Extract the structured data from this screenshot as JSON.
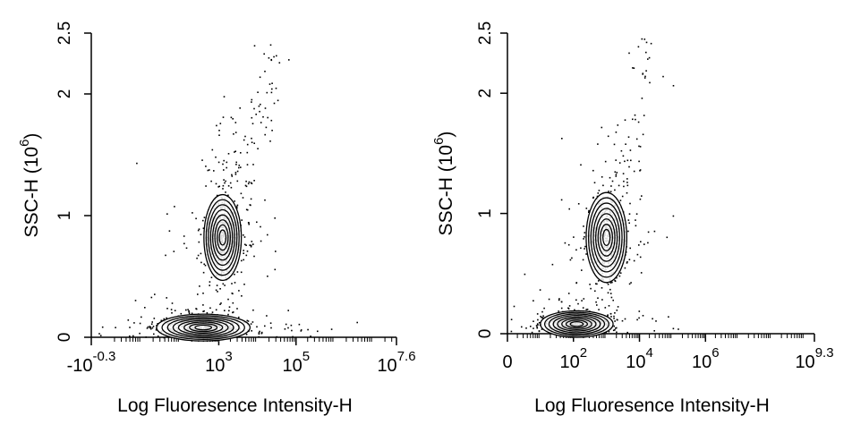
{
  "chart_data": [
    {
      "type": "scatter",
      "subtype": "density-contour",
      "xlabel": "Log Fluoresence Intensity-H",
      "ylabel": "SSC-H",
      "ylabel_unit": "(10",
      "ylabel_unit_exp": "6",
      "ylabel_unit_close": ")",
      "x_scale": "log",
      "xlim_exp": [
        -0.3,
        7.6
      ],
      "ylim": [
        0,
        2.5
      ],
      "x_ticks": [
        {
          "base": "-10",
          "exp": "-0.3",
          "value_exp": -0.3
        },
        {
          "base": "10",
          "exp": "3",
          "value_exp": 3
        },
        {
          "base": "10",
          "exp": "5",
          "value_exp": 5
        },
        {
          "base": "10",
          "exp": "7.6",
          "value_exp": 7.6
        }
      ],
      "y_ticks": [
        {
          "label": "0",
          "value": 0
        },
        {
          "label": "1",
          "value": 1
        },
        {
          "label": "2",
          "value": 2
        },
        {
          "label": "2.5",
          "value": 2.5
        }
      ],
      "populations": [
        {
          "name": "",
          "center_log_x": 3.1,
          "center_y": 0.82,
          "spread_log_x": 0.22,
          "spread_y": 0.16,
          "count": 650
        },
        {
          "name": "",
          "center_log_x": 2.6,
          "center_y": 0.08,
          "spread_log_x": 0.55,
          "spread_y": 0.05,
          "count": 700
        }
      ],
      "grid": false,
      "legend": "none"
    },
    {
      "type": "scatter",
      "subtype": "density-contour",
      "xlabel": "Log Fluoresence Intensity-H",
      "ylabel": "SSC-H",
      "ylabel_unit": "(10",
      "ylabel_unit_exp": "6",
      "ylabel_unit_close": ")",
      "x_scale": "log",
      "xlim_exp": [
        0,
        9.3
      ],
      "ylim": [
        0,
        2.5
      ],
      "x_ticks": [
        {
          "base": "0",
          "exp": "",
          "value_exp": 0
        },
        {
          "base": "10",
          "exp": "2",
          "value_exp": 2
        },
        {
          "base": "10",
          "exp": "4",
          "value_exp": 4
        },
        {
          "base": "10",
          "exp": "6",
          "value_exp": 6
        },
        {
          "base": "10",
          "exp": "9.3",
          "value_exp": 9.3
        }
      ],
      "y_ticks": [
        {
          "label": "0",
          "value": 0
        },
        {
          "label": "1",
          "value": 1
        },
        {
          "label": "2",
          "value": 2
        },
        {
          "label": "2.5",
          "value": 2.5
        }
      ],
      "populations": [
        {
          "name": "",
          "center_log_x": 3.0,
          "center_y": 0.8,
          "spread_log_x": 0.28,
          "spread_y": 0.17,
          "count": 550
        },
        {
          "name": "",
          "center_log_x": 2.1,
          "center_y": 0.08,
          "spread_log_x": 0.5,
          "spread_y": 0.05,
          "count": 650
        }
      ],
      "grid": false,
      "legend": "none"
    }
  ]
}
